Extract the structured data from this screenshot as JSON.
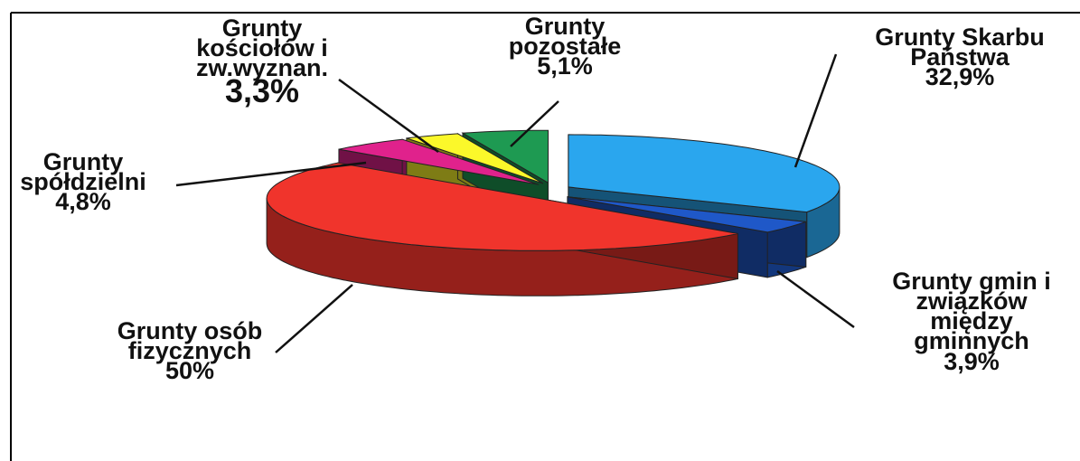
{
  "chart_data": {
    "type": "pie",
    "categories": [
      "Grunty Skarbu Państwa",
      "Grunty gmin i związków między gminnych",
      "Grunty osób fizycznych",
      "Grunty spółdzielni",
      "Grunty kościołów i zw.wyznan.",
      "Grunty pozostałe"
    ],
    "values": [
      32.9,
      3.9,
      50,
      4.8,
      3.3,
      5.1
    ],
    "value_labels": [
      "32,9%",
      "3,9%",
      "50%",
      "4,8%",
      "3,3%",
      "5,1%"
    ],
    "colors": [
      "#2aa6ee",
      "#1f58c8",
      "#f0342c",
      "#e0228c",
      "#fbf82a",
      "#1e9a52"
    ]
  }
}
